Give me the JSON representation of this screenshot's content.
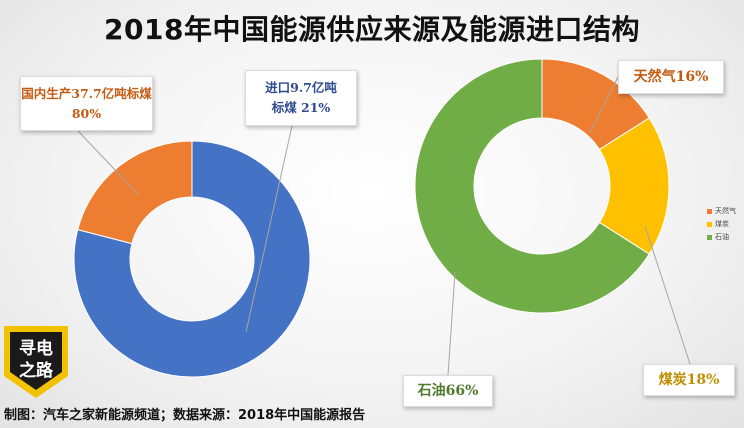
{
  "title": "2018年中国能源供应来源及能源进口结构",
  "footer": "制图：汽车之家新能源频道；数据来源：2018年中国能源报告",
  "logo_text": [
    "寻电",
    "之路"
  ],
  "colors": {
    "domestic": "#ed7d31",
    "import": "#4472c4",
    "natural_gas": "#ed7d31",
    "coal": "#ffc000",
    "oil": "#70ad47"
  },
  "chart_data": [
    {
      "type": "pie",
      "variant": "donut",
      "categories": [
        "国内生产",
        "进口"
      ],
      "values": [
        80,
        21
      ],
      "annotations": {
        "domestic": [
          "国内生产37.7亿吨标煤",
          "80%"
        ],
        "import": [
          "进口9.7亿吨",
          "标煤 21%"
        ]
      }
    },
    {
      "type": "pie",
      "variant": "donut",
      "categories": [
        "天然气",
        "煤炭",
        "石油"
      ],
      "values": [
        16,
        18,
        66
      ],
      "legend": [
        "天然气",
        "煤炭",
        "石油"
      ],
      "legend_position": "right",
      "annotations": {
        "natural_gas": "天然气16%",
        "coal": "煤炭18%",
        "oil": "石油66%"
      }
    }
  ]
}
